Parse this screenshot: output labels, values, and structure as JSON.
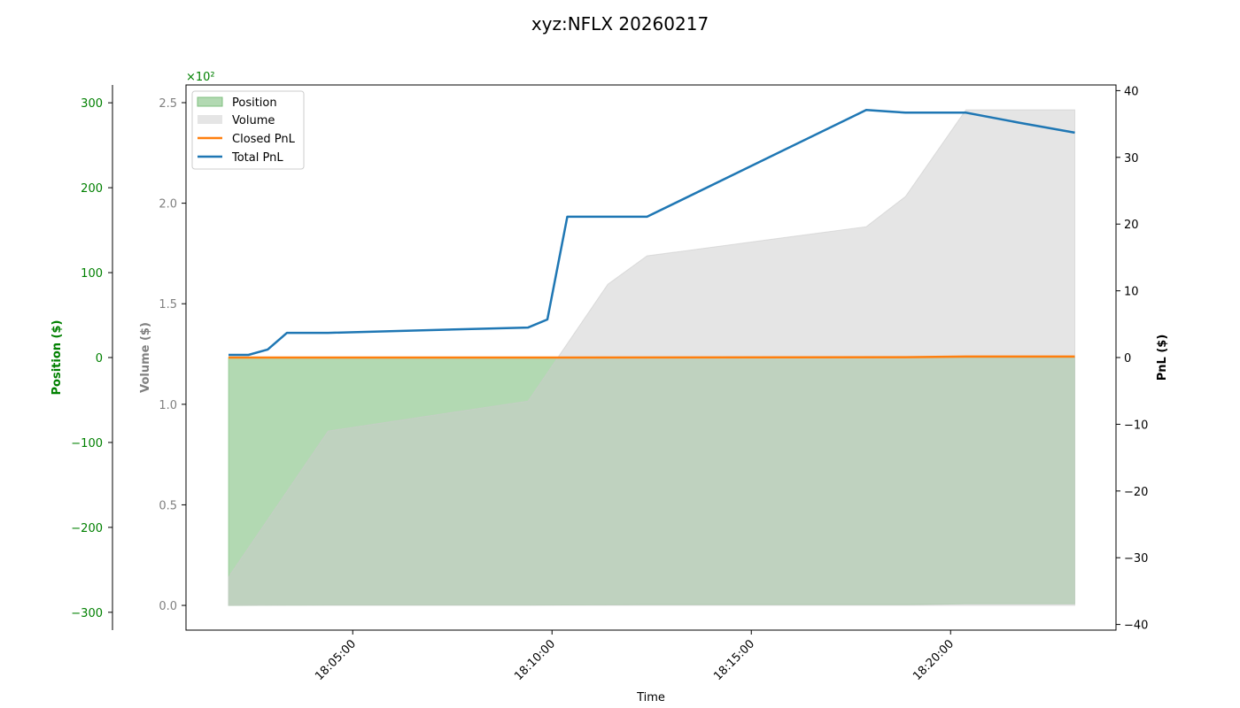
{
  "chart_data": {
    "type": "line",
    "title": "xyz:NFLX 20260217",
    "xlabel": "Time",
    "xlim": [
      "18:00:49",
      "18:24:09"
    ],
    "x_ticks": [
      "18:05:00",
      "18:10:00",
      "18:15:00",
      "18:20:00"
    ],
    "axes": {
      "position": {
        "label": "Position ($)",
        "ylim": [
          -321,
          321
        ],
        "ticks": [
          -300,
          -200,
          -100,
          0,
          100,
          200,
          300
        ],
        "color": "#008000"
      },
      "volume": {
        "label": "Volume ($)",
        "ylim": [
          -12.3,
          258.8
        ],
        "ticks": [
          0,
          50,
          100,
          150,
          200,
          250
        ],
        "tick_labels": [
          "0.0",
          "0.5",
          "1.0",
          "1.5",
          "2.0",
          "2.5"
        ],
        "scale_label": "×10²",
        "color": "#808080"
      },
      "pnl": {
        "label": "PnL ($)",
        "ylim": [
          -40.85,
          40.85
        ],
        "ticks": [
          -40,
          -30,
          -20,
          -10,
          0,
          10,
          20,
          30,
          40
        ],
        "color": "#000000"
      }
    },
    "legend": {
      "placement": "top-left"
    },
    "grid": false,
    "series": [
      {
        "name": "Position",
        "kind": "area",
        "axis": "position",
        "color": "#7fbf7f",
        "x": [
          "18:01:53",
          "18:04:23",
          "18:09:24",
          "18:12:23",
          "18:18:52",
          "18:20:23",
          "18:23:07"
        ],
        "values": [
          -292,
          -291.5,
          -291.5,
          -291,
          -291,
          -290,
          -290
        ]
      },
      {
        "name": "Volume",
        "kind": "area",
        "axis": "volume",
        "color": "#cccccc",
        "x": [
          "18:01:53",
          "18:04:23",
          "18:09:24",
          "18:11:24",
          "18:12:23",
          "18:17:53",
          "18:18:52",
          "18:20:23",
          "18:23:07"
        ],
        "values": [
          14.1,
          86.7,
          101.6,
          159.7,
          173.8,
          188.3,
          203.3,
          246.4,
          246.4
        ]
      },
      {
        "name": "Closed PnL",
        "kind": "line",
        "axis": "pnl",
        "color": "#ff7f0e",
        "x": [
          "18:01:53",
          "18:09:24",
          "18:18:52",
          "18:20:23",
          "18:23:07"
        ],
        "values": [
          0,
          0,
          0.05,
          0.15,
          0.15
        ]
      },
      {
        "name": "Total PnL",
        "kind": "line",
        "axis": "pnl",
        "color": "#1f77b4",
        "x": [
          "18:01:53",
          "18:02:23",
          "18:02:52",
          "18:03:21",
          "18:04:23",
          "18:09:24",
          "18:09:53",
          "18:10:23",
          "18:12:23",
          "18:17:53",
          "18:18:52",
          "18:20:23",
          "18:21:43",
          "18:23:07"
        ],
        "values": [
          0.4,
          0.4,
          1.2,
          3.7,
          3.7,
          4.5,
          5.7,
          21.1,
          21.1,
          37.1,
          36.7,
          36.7,
          35.2,
          33.7
        ]
      }
    ]
  }
}
